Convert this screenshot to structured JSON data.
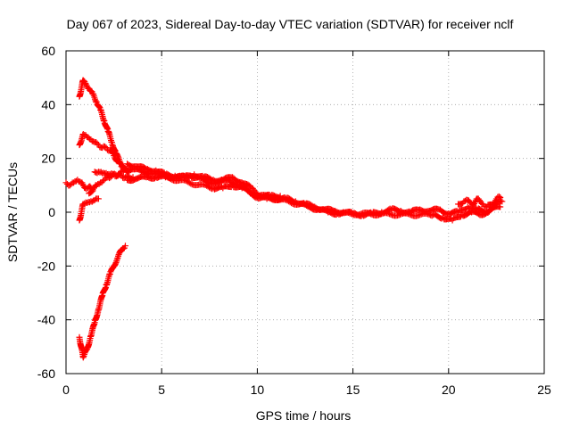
{
  "chart_data": {
    "type": "scatter",
    "title": "Day 067 of 2023, Sidereal Day-to-day VTEC variation (SDTVAR) for receiver nclf",
    "xlabel": "GPS time / hours",
    "ylabel": "SDTVAR / TECUs",
    "xlim": [
      0,
      25
    ],
    "ylim": [
      -60,
      60
    ],
    "x_ticks": [
      0,
      5,
      10,
      15,
      20,
      25
    ],
    "y_ticks": [
      -60,
      -40,
      -20,
      0,
      20,
      40,
      60
    ],
    "x_tick_labels": [
      "0",
      "5",
      "10",
      "15",
      "20",
      "25"
    ],
    "y_tick_labels": [
      "-60",
      "-40",
      "-20",
      "0",
      "20",
      "40",
      "60"
    ],
    "grid": true,
    "marker": "+",
    "color": "#ff0000",
    "series": [
      {
        "name": "arc-upper-40",
        "x": [
          0.7,
          0.9,
          1.0,
          1.2,
          1.4,
          1.6,
          1.8,
          2.0,
          2.2,
          2.4,
          2.6,
          2.8,
          3.0,
          3.2
        ],
        "y": [
          43,
          49,
          48,
          46,
          44,
          41,
          38,
          34,
          30,
          26,
          22,
          19,
          17,
          15
        ]
      },
      {
        "name": "arc-upper-25",
        "x": [
          0.7,
          0.9,
          1.1,
          1.3,
          1.5,
          1.7,
          1.9,
          2.1,
          2.3,
          2.5,
          2.7,
          2.9,
          3.1,
          3.3
        ],
        "y": [
          25,
          29,
          28,
          27,
          26,
          25,
          24,
          24,
          23,
          21,
          19,
          17,
          16,
          15
        ]
      },
      {
        "name": "arc-mid-15",
        "x": [
          1.5,
          1.7,
          1.9,
          2.1,
          2.3,
          2.5,
          2.7,
          2.9,
          3.1,
          3.3,
          3.5
        ],
        "y": [
          15,
          15,
          14.5,
          14.5,
          14,
          14,
          13.5,
          13.5,
          13,
          13,
          13
        ]
      },
      {
        "name": "arc-rising-7",
        "x": [
          1.2,
          1.4,
          1.6,
          1.8,
          2.0,
          2.2,
          2.4,
          2.6,
          2.8,
          3.0
        ],
        "y": [
          7,
          8.5,
          10,
          11,
          12,
          13,
          13.5,
          14,
          14.5,
          15
        ]
      },
      {
        "name": "arc-lower-small",
        "x": [
          0.7,
          0.9,
          1.1,
          1.3,
          1.5,
          1.7
        ],
        "y": [
          -3,
          3,
          3.5,
          4,
          4.5,
          5
        ]
      },
      {
        "name": "arc-start-10",
        "x": [
          0.0,
          0.2,
          0.4,
          0.6,
          0.8,
          1.0,
          1.2,
          1.4
        ],
        "y": [
          11,
          10,
          11,
          12,
          11,
          9,
          9.5,
          8
        ]
      },
      {
        "name": "arc-lower-negative",
        "x": [
          0.7,
          0.9,
          1.1,
          1.3,
          1.5,
          1.7,
          1.9,
          2.1,
          2.3,
          2.5,
          2.7,
          2.9,
          3.1
        ],
        "y": [
          -46.5,
          -54,
          -51,
          -46,
          -41,
          -36,
          -31,
          -27,
          -23,
          -20,
          -17,
          -14,
          -12.5
        ]
      },
      {
        "name": "main-trend",
        "x": [
          3.0,
          3.5,
          4.0,
          4.5,
          5.0,
          5.5,
          6.0,
          6.5,
          7.0,
          7.5,
          8.0,
          8.5,
          9.0,
          9.5,
          10.0,
          10.5,
          11.0,
          11.5,
          12.0,
          12.5,
          13.0,
          13.5,
          14.0,
          14.5,
          15.0,
          15.5,
          16.0,
          16.5,
          17.0,
          17.5,
          18.0,
          18.5,
          19.0,
          19.5,
          20.0,
          20.5,
          21.0,
          21.5,
          22.0,
          22.5,
          22.8
        ],
        "y": [
          16,
          16,
          15,
          14.5,
          14,
          13,
          13,
          13.5,
          12.5,
          11,
          11,
          12,
          10,
          8,
          5.5,
          5,
          5,
          5,
          4,
          3,
          2,
          1,
          0.5,
          0,
          -0.5,
          -1,
          -0.5,
          0,
          1,
          0.5,
          0,
          1,
          0.5,
          1,
          -0.5,
          0,
          2,
          1,
          0,
          3,
          4
        ]
      },
      {
        "name": "trend-offset-upper",
        "x": [
          3.2,
          3.7,
          4.2,
          4.7,
          5.2,
          5.7,
          6.2,
          6.7,
          7.2,
          7.7,
          8.2,
          8.7,
          9.2,
          9.7,
          10.2,
          10.7,
          11.2
        ],
        "y": [
          18,
          17,
          16,
          15.5,
          14,
          13.5,
          13,
          14,
          13,
          12,
          12,
          13,
          11,
          9,
          6,
          6,
          6
        ]
      },
      {
        "name": "trend-offset-lower",
        "x": [
          3.2,
          3.7,
          4.2,
          4.7,
          5.2,
          7.7,
          8.2,
          8.7,
          9.2,
          9.7,
          12.2,
          12.7,
          13.2,
          13.7,
          14.2,
          19.2,
          19.7,
          20.2,
          20.7,
          21.2,
          21.7,
          22.2,
          22.7
        ],
        "y": [
          12,
          12.5,
          13,
          13,
          13,
          9,
          9,
          10,
          9,
          7,
          3,
          2,
          1,
          0,
          -0.5,
          -1,
          -2,
          -3,
          -1,
          0,
          -1,
          1,
          2
        ]
      },
      {
        "name": "tail-cluster-upper",
        "x": [
          20.5,
          20.8,
          21.0,
          21.3,
          21.5,
          21.8,
          22.0,
          22.3,
          22.5,
          22.7
        ],
        "y": [
          3,
          4,
          4.5,
          3,
          5,
          3,
          2,
          3,
          5,
          5.5
        ]
      }
    ]
  }
}
